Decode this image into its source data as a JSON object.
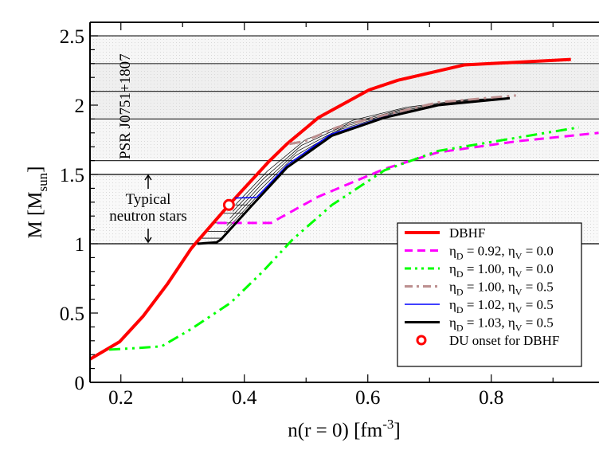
{
  "chart_data": {
    "type": "line",
    "xlabel": {
      "main": "n(r = 0)   [fm",
      "sup": "-3",
      "end": "]"
    },
    "ylabel": {
      "main": "M   [M",
      "sub": "sun",
      "end": "]"
    },
    "xlim": [
      0.15,
      0.974
    ],
    "ylim": [
      0,
      2.6
    ],
    "xticks": [
      "0.2",
      "0.4",
      "0.6",
      "0.8"
    ],
    "xtick_values": [
      0.2,
      0.4,
      0.6,
      0.8
    ],
    "yticks": [
      "0",
      "0.5",
      "1",
      "1.5",
      "2",
      "2.5"
    ],
    "ytick_values": [
      0,
      0.5,
      1,
      1.5,
      2,
      2.5
    ],
    "grid": false,
    "legend_position": "bottom-right",
    "bands": [
      {
        "from": 2.3,
        "to": 2.5,
        "color": "#f6f6f6"
      },
      {
        "from": 1.9,
        "to": 2.3,
        "color": "#efefef"
      },
      {
        "from": 1.6,
        "to": 1.9,
        "color": "#f6f6f6"
      },
      {
        "from": 1.0,
        "to": 1.5,
        "color": "#f9f9f9"
      }
    ],
    "hlines": [
      2.5,
      2.3,
      2.1,
      1.9,
      1.6,
      1.5,
      1.0
    ],
    "annotations": {
      "pulsar": "PSR J0751+1807",
      "typical_line1": "Typical",
      "typical_line2": "neutron stars"
    },
    "series": [
      {
        "name": "DBHF",
        "name_parts": [
          {
            "t": "DBHF"
          }
        ],
        "color": "#ff0000",
        "style": "solid",
        "width": 4,
        "x": [
          0.15,
          0.198,
          0.236,
          0.275,
          0.314,
          0.327,
          0.375,
          0.439,
          0.469,
          0.52,
          0.602,
          0.649,
          0.756,
          0.929
        ],
        "y": [
          0.167,
          0.293,
          0.477,
          0.707,
          0.966,
          1.034,
          1.28,
          1.59,
          1.72,
          1.91,
          2.11,
          2.18,
          2.29,
          2.33
        ]
      },
      {
        "name": "ηD = 0.92, ηV = 0.0",
        "name_parts": [
          {
            "t": "η"
          },
          {
            "t": "D",
            "sub": true
          },
          {
            "t": " = 0.92, η"
          },
          {
            "t": "V",
            "sub": true
          },
          {
            "t": " = 0.0"
          }
        ],
        "color": "#ff00ff",
        "style": "dash",
        "width": 3,
        "x": [
          0.356,
          0.443,
          0.52,
          0.627,
          0.714,
          0.843,
          0.974
        ],
        "y": [
          1.15,
          1.15,
          1.34,
          1.54,
          1.66,
          1.74,
          1.8
        ]
      },
      {
        "name": "ηD = 1.00, ηV = 0.0",
        "name_parts": [
          {
            "t": "η"
          },
          {
            "t": "D",
            "sub": true
          },
          {
            "t": " = 1.00, η"
          },
          {
            "t": "V",
            "sub": true
          },
          {
            "t": " = 0.0"
          }
        ],
        "color": "#00ff00",
        "style": "dashdotdot",
        "width": 3,
        "x": [
          0.181,
          0.224,
          0.266,
          0.314,
          0.378,
          0.43,
          0.478,
          0.542,
          0.627,
          0.714,
          0.942
        ],
        "y": [
          0.236,
          0.247,
          0.26,
          0.385,
          0.575,
          0.8,
          1.03,
          1.28,
          1.53,
          1.67,
          1.84
        ]
      },
      {
        "name": "ηD = 1.00, ηV = 0.5",
        "name_parts": [
          {
            "t": "η"
          },
          {
            "t": "D",
            "sub": true
          },
          {
            "t": " = 1.00, η"
          },
          {
            "t": "V",
            "sub": true
          },
          {
            "t": " = 0.5"
          }
        ],
        "color": "#bc8f8f",
        "style": "dashdot",
        "width": 3,
        "x": [
          0.473,
          0.498,
          0.55,
          0.61,
          0.714,
          0.84
        ],
        "y": [
          1.72,
          1.74,
          1.84,
          1.91,
          2.02,
          2.07
        ]
      },
      {
        "name": "ηD = 1.02, ηV = 0.5",
        "name_parts": [
          {
            "t": "η"
          },
          {
            "t": "D",
            "sub": true
          },
          {
            "t": " = 1.02, η"
          },
          {
            "t": "V",
            "sub": true
          },
          {
            "t": " = 0.5"
          }
        ],
        "color": "#0000ff",
        "style": "solid",
        "width": 1.5,
        "x": [
          0.385,
          0.42,
          0.47,
          0.54,
          0.627,
          0.714,
          0.83
        ],
        "y": [
          1.33,
          1.335,
          1.57,
          1.79,
          1.915,
          2.0,
          2.05
        ]
      },
      {
        "name": "ηD = 1.03, ηV = 0.5",
        "name_parts": [
          {
            "t": "η"
          },
          {
            "t": "D",
            "sub": true
          },
          {
            "t": " = 1.03, η"
          },
          {
            "t": "V",
            "sub": true
          },
          {
            "t": " = 0.5"
          }
        ],
        "color": "#000000",
        "style": "solid",
        "width": 3,
        "x": [
          0.324,
          0.355,
          0.362,
          0.413,
          0.469,
          0.542,
          0.627,
          0.714,
          0.83
        ],
        "y": [
          1.0,
          1.01,
          1.03,
          1.28,
          1.55,
          1.78,
          1.91,
          2.0,
          2.05
        ]
      }
    ],
    "markers": [
      {
        "name": "DU onset for DBHF",
        "name_parts": [
          {
            "t": "DU onset for DBHF"
          }
        ],
        "color": "#ff0000",
        "shape": "open-circle",
        "x": 0.375,
        "y": 1.28
      }
    ],
    "hatch_levels": [
      1.04,
      1.09,
      1.15,
      1.22,
      1.28
    ]
  }
}
